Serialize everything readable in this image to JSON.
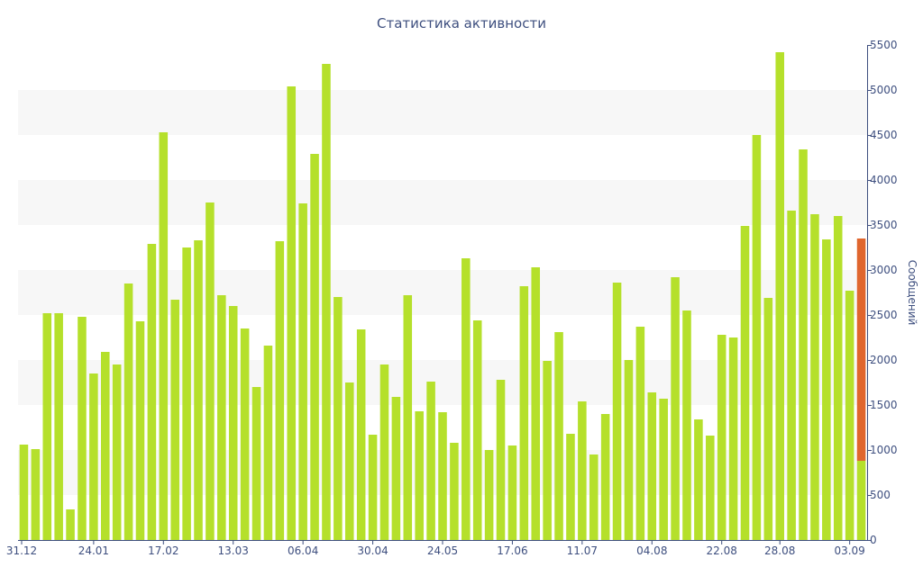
{
  "chart_data": {
    "type": "bar",
    "title": "Статистика активности",
    "ylabel": "Сообщений",
    "xlabel": "",
    "ylim": [
      0,
      5500
    ],
    "yticks": [
      0,
      500,
      1000,
      1500,
      2000,
      2500,
      3000,
      3500,
      4000,
      4500,
      5000,
      5500
    ],
    "grid": "alternating horizontal bands",
    "y_axis_side": "right",
    "x_tick_labels": [
      "31.12",
      "24.01",
      "17.02",
      "13.03",
      "06.04",
      "30.04",
      "24.05",
      "17.06",
      "11.07",
      "04.08",
      "22.08",
      "28.08",
      "03.09"
    ],
    "x_tick_positions": [
      0,
      6,
      12,
      18,
      24,
      30,
      36,
      42,
      48,
      54,
      60,
      65,
      71
    ],
    "colors": {
      "bar": "#b5e02b",
      "highlight": "#e0662e",
      "axis": "#3e4f7f",
      "band": "#f7f7f7"
    },
    "values": [
      1060,
      1010,
      2520,
      2520,
      340,
      2480,
      1850,
      2090,
      1950,
      2850,
      2430,
      3290,
      4530,
      2670,
      3250,
      3330,
      3750,
      2720,
      2600,
      2350,
      1700,
      2160,
      3320,
      5040,
      3740,
      4290,
      5290,
      2700,
      1750,
      2340,
      1170,
      1950,
      1590,
      2720,
      1430,
      1760,
      1420,
      1080,
      3130,
      2440,
      1000,
      1780,
      1050,
      2820,
      3030,
      1990,
      2310,
      1180,
      1540,
      950,
      1400,
      2860,
      2000,
      2370,
      1640,
      1570,
      2920,
      2550,
      1340,
      1160,
      2280,
      2250,
      3490,
      4500,
      2690,
      5420,
      3660,
      4340,
      3620,
      3340,
      3600,
      2770,
      3350
    ],
    "highlight_index": 72,
    "highlight_base_value": 880
  }
}
